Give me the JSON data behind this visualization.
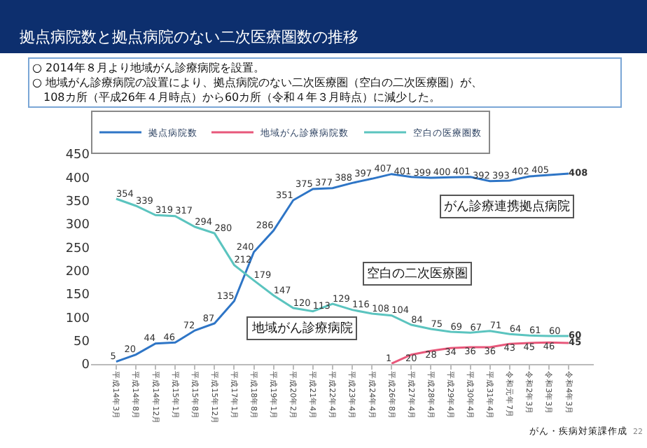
{
  "chart_data": {
    "type": "line",
    "title": "拠点病院数と拠点病院のない二次医療圏数の推移",
    "subtitle": "○ 2014年８月より地域がん診療病院を設置。\n○ 地域がん診療病院の設置により、拠点病院のない二次医療圏（空白の二次医療圏）が、\n　108カ所（平成26年４月時点）から60カ所（令和４年３月時点）に減少した。",
    "categories": [
      "平成14年3月",
      "平成14年8月",
      "平成14年12月",
      "平成15年1月",
      "平成15年8月",
      "平成15年12月",
      "平成17年1月",
      "平成18年8月",
      "平成19年1月",
      "平成20年2月",
      "平成21年4月",
      "平成22年4月",
      "平成23年4月",
      "平成24年4月",
      "平成26年8月",
      "平成27年4月",
      "平成28年4月",
      "平成29年4月",
      "平成30年4月",
      "平成31年4月",
      "令和元年7月",
      "令和2年3月",
      "令和3年3月",
      "令和4年3月"
    ],
    "series": [
      {
        "name": "拠点病院数",
        "color": "#2e75c6",
        "values": [
          5,
          20,
          44,
          46,
          72,
          87,
          135,
          240,
          286,
          351,
          375,
          377,
          388,
          397,
          407,
          401,
          399,
          400,
          401,
          392,
          393,
          402,
          405,
          408
        ]
      },
      {
        "name": "地域がん診療病院数",
        "color": "#e8577a",
        "values": [
          null,
          null,
          null,
          null,
          null,
          null,
          null,
          null,
          null,
          null,
          null,
          null,
          null,
          null,
          1,
          20,
          28,
          34,
          36,
          36,
          43,
          45,
          46,
          45
        ]
      },
      {
        "name": "空白の医療圏数",
        "color": "#5bc4bf",
        "values": [
          354,
          339,
          319,
          317,
          294,
          280,
          212,
          179,
          147,
          120,
          113,
          129,
          116,
          108,
          104,
          84,
          75,
          69,
          67,
          71,
          64,
          61,
          60,
          60
        ]
      }
    ],
    "ylim": [
      0,
      450
    ],
    "yticks": [
      0,
      50,
      100,
      150,
      200,
      250,
      300,
      350,
      400,
      450
    ],
    "data_labels": true,
    "legend": "top",
    "marker": "none",
    "line_style": "solid",
    "annotations": [
      "がん診療連携拠点病院",
      "空白の二次医療圏",
      "地域がん診療病院",
      "がん・疾病対策課作成",
      "22"
    ]
  }
}
